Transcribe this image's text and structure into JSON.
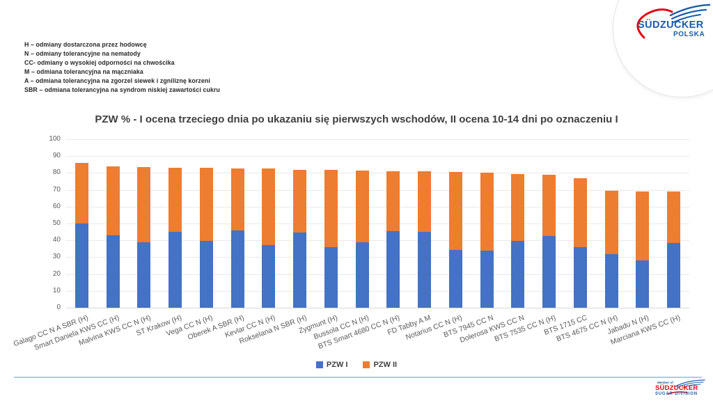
{
  "header": {
    "abbreviations": [
      "H – odmiany dostarczona przez hodowcę",
      "N – odmiany tolerancyjne na nematody",
      "CC- odmiany o wysokiej odporności na chwościka",
      "M – odmiana tolerancyjna na mączniaka",
      "A – odmiana tolerancyjna na zgorzel siewek i zgniliznę korzeni",
      "SBR – odmiana tolerancyjna na syndrom niskiej zawartości cukru"
    ]
  },
  "logo_top": {
    "brand": "SÜDZUCKER",
    "sub": "POLSKA"
  },
  "logo_bottom": {
    "member": "Member of",
    "brand": "SÜDZUCKER",
    "sub": "SUGAR DIVISION"
  },
  "chart_data": {
    "type": "bar",
    "stacked": true,
    "title": "PZW % - I ocena trzeciego dnia po ukazaniu się pierwszych wschodów, II ocena 10-14 dni po oznaczeniu I",
    "categories": [
      "Galago CC N A SBR (H)",
      "Smart Daniela KWS CC (H)",
      "Malvina KWS CC N (H)",
      "ST Krakow (H)",
      "Vega CC N (H)",
      "Oberek A SBR (H)",
      "Kevlar CC N (H)",
      "Rokselana N SBR (H)",
      "Zygmunt (H)",
      "Bussola CC N (H)",
      "BTS Smart 4680 CC N (H)",
      "FD Tabby A M",
      "Notarius CC N (H)",
      "BTS 7945 CC N",
      "Dolerosa KWS CC N",
      "BTS 7535 CC N (H)",
      "BTS 1715 CC",
      "BTS 4675 CC N (H)",
      "Jabadu N (H)",
      "Marciana KWS CC (H)"
    ],
    "series": [
      {
        "name": "PZW I",
        "color": "#4472C4",
        "values": [
          50,
          43,
          39,
          45,
          39.5,
          46,
          37,
          44.5,
          36,
          39,
          45.5,
          45,
          34.5,
          34,
          39.5,
          42.5,
          36,
          32,
          28,
          38.5
        ]
      },
      {
        "name": "PZW II",
        "color": "#ED7D31",
        "values": [
          36,
          41,
          44.5,
          38,
          43.5,
          36.5,
          45.5,
          37.5,
          46,
          42.5,
          35.5,
          36,
          46,
          46,
          40,
          36.5,
          41,
          37.5,
          41,
          30.5
        ]
      }
    ],
    "ylim": [
      0,
      100
    ],
    "ytick_step": 10,
    "grid": true,
    "legend_position": "bottom"
  },
  "colors": {
    "bar_blue": "#4472C4",
    "bar_orange": "#ED7D31",
    "footer_rule": "#A9CCE9",
    "brand_blue": "#1A5CA8",
    "brand_red": "#E30613"
  }
}
